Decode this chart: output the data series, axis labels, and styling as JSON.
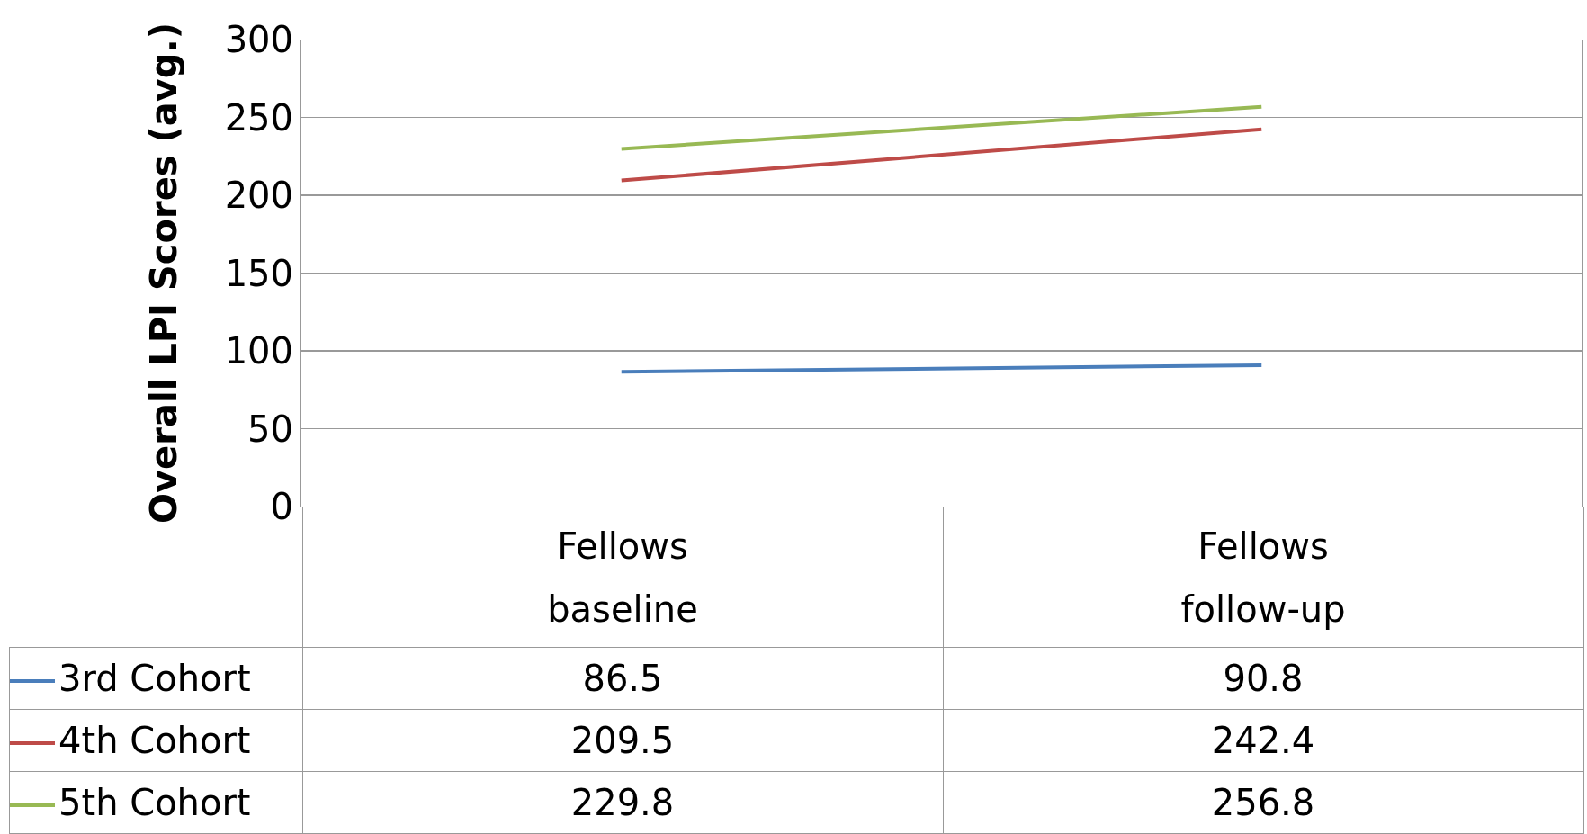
{
  "chart_data": {
    "type": "line",
    "ylabel": "Overall LPI Scores (avg.)",
    "categories": [
      "Fellows\nbaseline",
      "Fellows\nfollow-up"
    ],
    "series": [
      {
        "name": "3rd Cohort",
        "color": "#4a7ebb",
        "values": [
          86.5,
          90.8
        ]
      },
      {
        "name": "4th Cohort",
        "color": "#be4b48",
        "values": [
          209.5,
          242.4
        ]
      },
      {
        "name": "5th Cohort",
        "color": "#98b954",
        "values": [
          229.8,
          256.8
        ]
      }
    ],
    "ylim": [
      0,
      300
    ],
    "yticks": [
      0,
      50,
      100,
      150,
      200,
      250,
      300
    ],
    "grid": "y",
    "legend": "bottom left",
    "data_labels": true,
    "marker": "none",
    "line_style": "solid"
  }
}
